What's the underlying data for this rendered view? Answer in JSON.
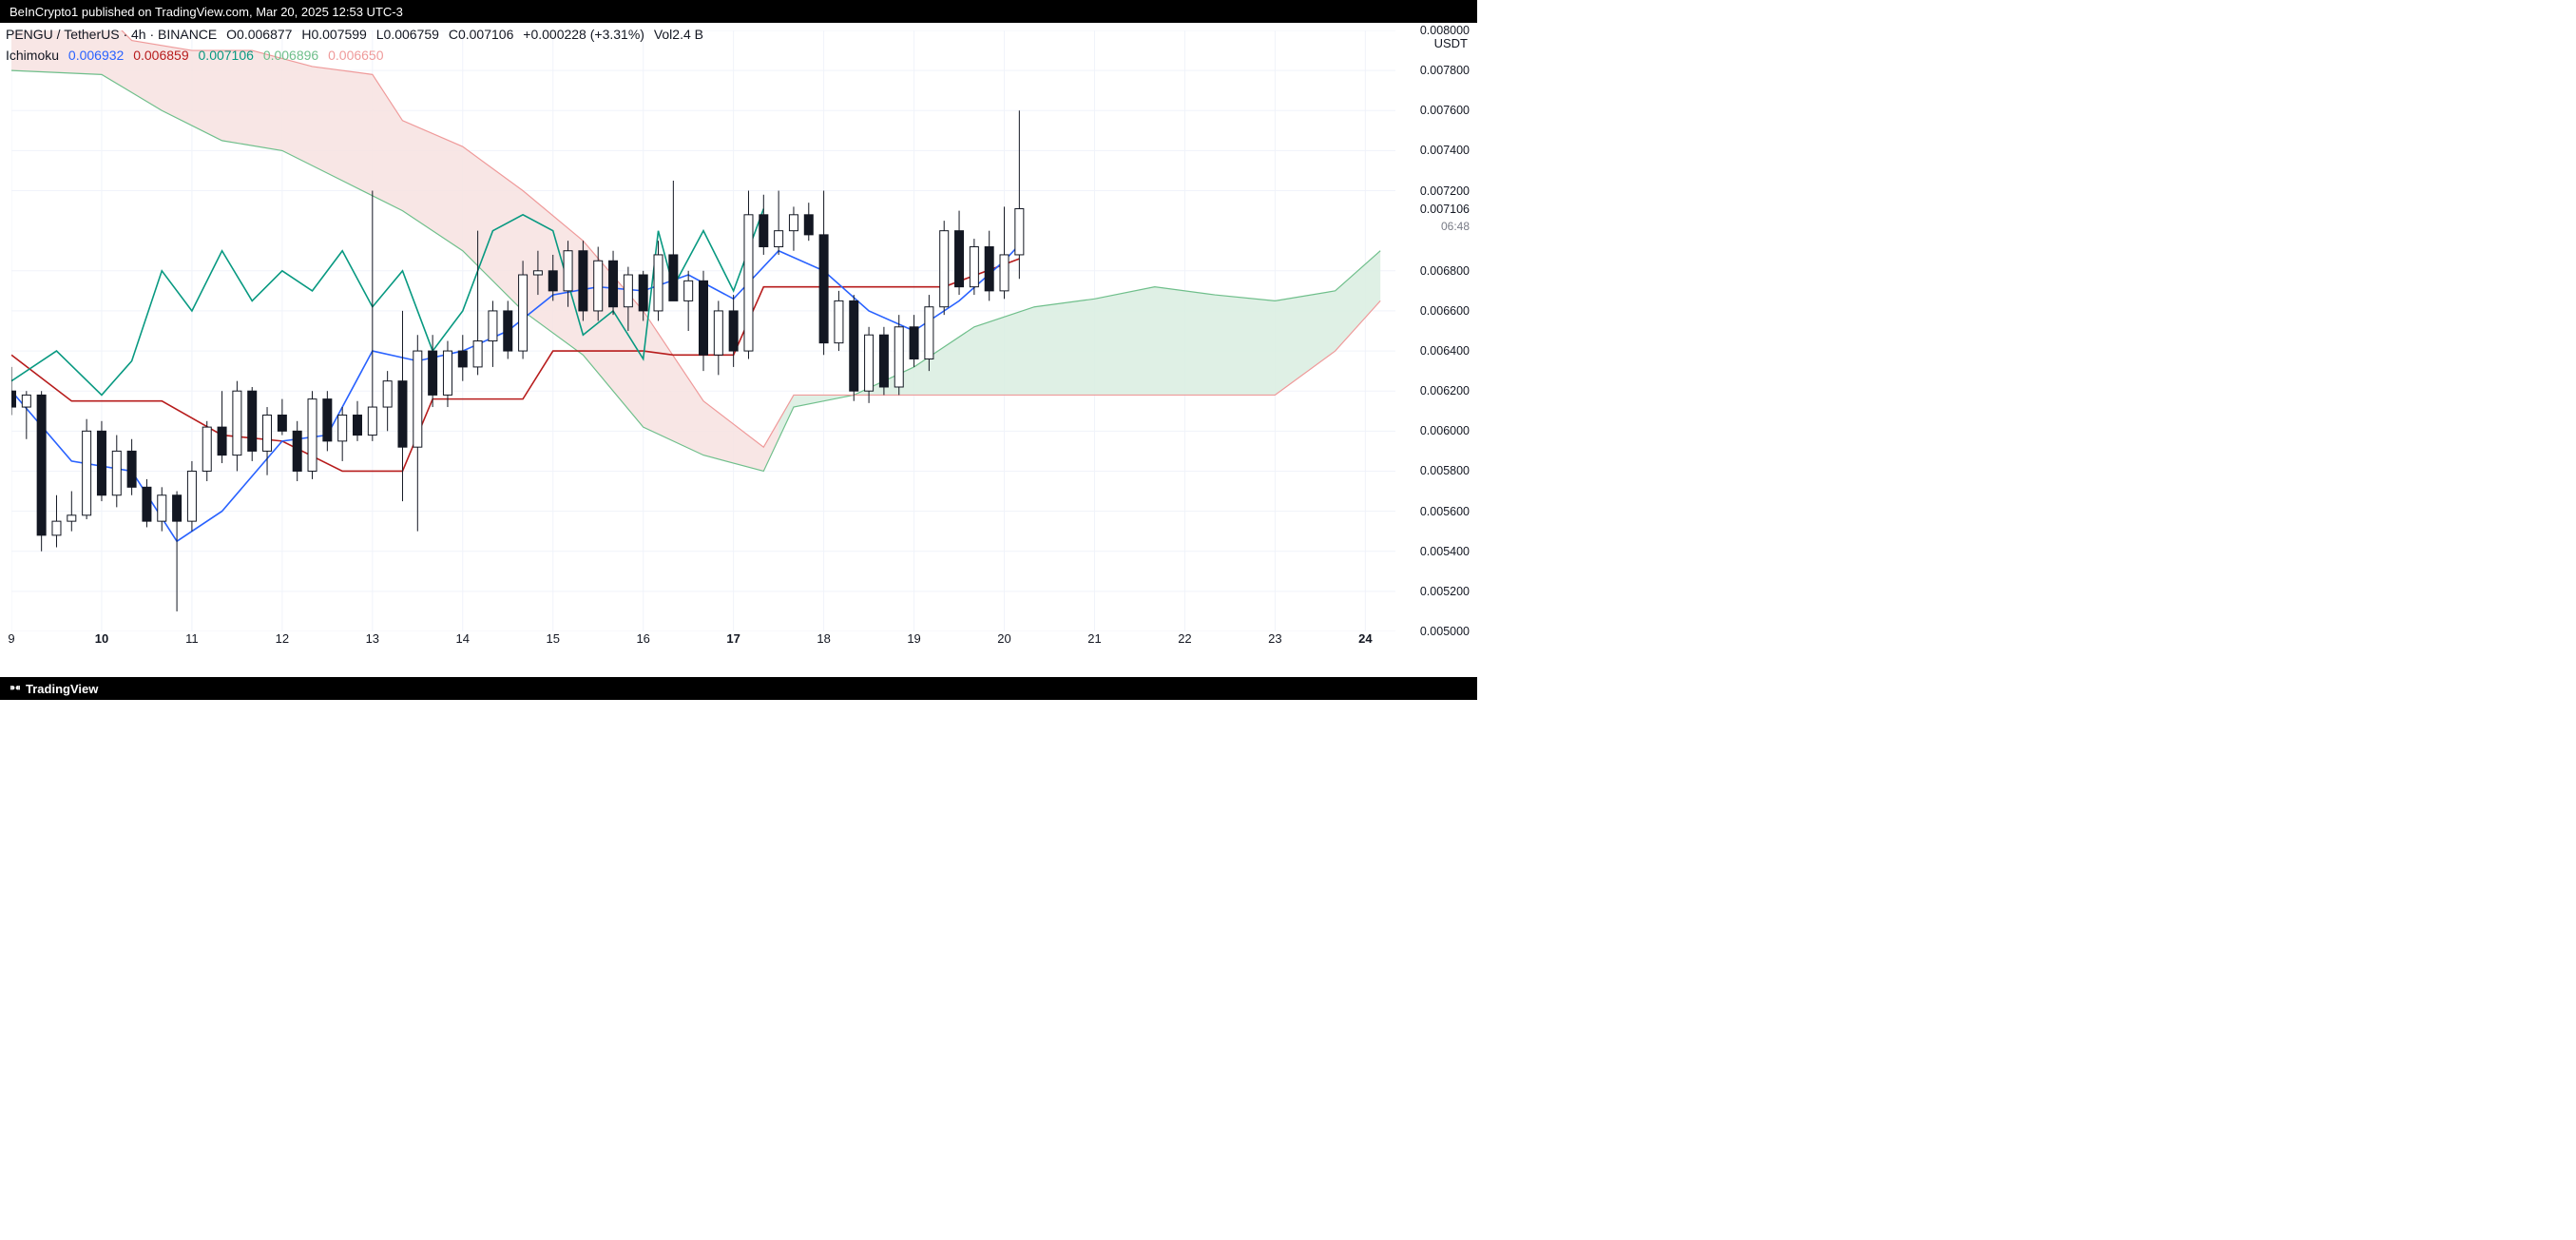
{
  "topbar": {
    "text": "BeInCrypto1 published on TradingView.com, Mar 20, 2025 12:53 UTC-3"
  },
  "header": {
    "symbol": "PENGU / TetherUS · 4h · BINANCE",
    "O_label": "O",
    "O": "0.006877",
    "H_label": "H",
    "H": "0.007599",
    "L_label": "L",
    "L": "0.006759",
    "C_label": "C",
    "C": "0.007106",
    "change_abs": "+0.000228",
    "change_pct": "(+3.31%)",
    "Vol_label": "Vol",
    "Vol": "2.4 B",
    "ohlc_color": "#131722",
    "change_color": "#131722"
  },
  "indicator": {
    "name": "Ichimoku",
    "v1": "0.006932",
    "c1": "#2962ff",
    "v2": "0.006859",
    "c2": "#b71c1c",
    "v3": "0.007106",
    "c3": "#089981",
    "v4": "0.006896",
    "c4": "#6fbf8b",
    "v5": "0.006650",
    "c5": "#ef9a9a"
  },
  "y_axis": {
    "title": "USDT",
    "min": 0.005,
    "max": 0.008,
    "ticks": [
      {
        "v": 0.008,
        "l": "0.008000"
      },
      {
        "v": 0.0078,
        "l": "0.007800"
      },
      {
        "v": 0.0076,
        "l": "0.007600"
      },
      {
        "v": 0.0074,
        "l": "0.007400"
      },
      {
        "v": 0.0072,
        "l": "0.007200"
      },
      {
        "v": 0.007106,
        "l": "0.007106",
        "last": true
      },
      {
        "v": 0.00702,
        "l": "06:48",
        "countdown": true
      },
      {
        "v": 0.0068,
        "l": "0.006800"
      },
      {
        "v": 0.0066,
        "l": "0.006600"
      },
      {
        "v": 0.0064,
        "l": "0.006400"
      },
      {
        "v": 0.0062,
        "l": "0.006200"
      },
      {
        "v": 0.006,
        "l": "0.006000"
      },
      {
        "v": 0.0058,
        "l": "0.005800"
      },
      {
        "v": 0.0056,
        "l": "0.005600"
      },
      {
        "v": 0.0054,
        "l": "0.005400"
      },
      {
        "v": 0.0052,
        "l": "0.005200"
      },
      {
        "v": 0.005,
        "l": "0.005000"
      }
    ]
  },
  "x_axis": {
    "min": 0,
    "max": 92,
    "ticks": [
      {
        "i": 0,
        "l": "9"
      },
      {
        "i": 6,
        "l": "10",
        "bold": true
      },
      {
        "i": 12,
        "l": "11"
      },
      {
        "i": 18,
        "l": "12"
      },
      {
        "i": 24,
        "l": "13"
      },
      {
        "i": 30,
        "l": "14"
      },
      {
        "i": 36,
        "l": "15"
      },
      {
        "i": 42,
        "l": "16"
      },
      {
        "i": 48,
        "l": "17",
        "bold": true
      },
      {
        "i": 54,
        "l": "18"
      },
      {
        "i": 60,
        "l": "19"
      },
      {
        "i": 66,
        "l": "20"
      },
      {
        "i": 72,
        "l": "21"
      },
      {
        "i": 78,
        "l": "22"
      },
      {
        "i": 84,
        "l": "23"
      },
      {
        "i": 90,
        "l": "24",
        "bold": true
      }
    ]
  },
  "style": {
    "grid_color": "#f0f3fa",
    "candle_up_fill": "#ffffff",
    "candle_up_border": "#131722",
    "candle_down_fill": "#131722",
    "candle_down_border": "#131722",
    "wick_color": "#131722",
    "wick_width": 1,
    "candle_body_width": 9,
    "tenkan_color": "#2962ff",
    "tenkan_width": 1.6,
    "kijun_color": "#b71c1c",
    "kijun_width": 1.6,
    "chikou_color": "#089981",
    "chikou_width": 1.6,
    "spanA_color": "#6fbf8b",
    "spanB_color": "#ef9a9a",
    "cloud_up_fill": "#d9ede0",
    "cloud_down_fill": "#f7e2e0",
    "cloud_opacity": 0.85
  },
  "candles": [
    {
      "i": 0,
      "o": 0.0062,
      "h": 0.00632,
      "l": 0.00608,
      "c": 0.00612
    },
    {
      "i": 1,
      "o": 0.00612,
      "h": 0.0062,
      "l": 0.00596,
      "c": 0.00618
    },
    {
      "i": 2,
      "o": 0.00618,
      "h": 0.0062,
      "l": 0.0054,
      "c": 0.00548
    },
    {
      "i": 3,
      "o": 0.00548,
      "h": 0.00568,
      "l": 0.00542,
      "c": 0.00555
    },
    {
      "i": 4,
      "o": 0.00555,
      "h": 0.0057,
      "l": 0.0055,
      "c": 0.00558
    },
    {
      "i": 5,
      "o": 0.00558,
      "h": 0.00606,
      "l": 0.00556,
      "c": 0.006
    },
    {
      "i": 6,
      "o": 0.006,
      "h": 0.00605,
      "l": 0.00565,
      "c": 0.00568
    },
    {
      "i": 7,
      "o": 0.00568,
      "h": 0.00598,
      "l": 0.00562,
      "c": 0.0059
    },
    {
      "i": 8,
      "o": 0.0059,
      "h": 0.00596,
      "l": 0.00568,
      "c": 0.00572
    },
    {
      "i": 9,
      "o": 0.00572,
      "h": 0.00576,
      "l": 0.00552,
      "c": 0.00555
    },
    {
      "i": 10,
      "o": 0.00555,
      "h": 0.00572,
      "l": 0.0055,
      "c": 0.00568
    },
    {
      "i": 11,
      "o": 0.00568,
      "h": 0.0057,
      "l": 0.0051,
      "c": 0.00555
    },
    {
      "i": 12,
      "o": 0.00555,
      "h": 0.00585,
      "l": 0.0055,
      "c": 0.0058
    },
    {
      "i": 13,
      "o": 0.0058,
      "h": 0.00605,
      "l": 0.00575,
      "c": 0.00602
    },
    {
      "i": 14,
      "o": 0.00602,
      "h": 0.0062,
      "l": 0.00584,
      "c": 0.00588
    },
    {
      "i": 15,
      "o": 0.00588,
      "h": 0.00625,
      "l": 0.0058,
      "c": 0.0062
    },
    {
      "i": 16,
      "o": 0.0062,
      "h": 0.00622,
      "l": 0.00585,
      "c": 0.0059
    },
    {
      "i": 17,
      "o": 0.0059,
      "h": 0.00612,
      "l": 0.00578,
      "c": 0.00608
    },
    {
      "i": 18,
      "o": 0.00608,
      "h": 0.00616,
      "l": 0.00598,
      "c": 0.006
    },
    {
      "i": 19,
      "o": 0.006,
      "h": 0.00605,
      "l": 0.00575,
      "c": 0.0058
    },
    {
      "i": 20,
      "o": 0.0058,
      "h": 0.0062,
      "l": 0.00576,
      "c": 0.00616
    },
    {
      "i": 21,
      "o": 0.00616,
      "h": 0.0062,
      "l": 0.0059,
      "c": 0.00595
    },
    {
      "i": 22,
      "o": 0.00595,
      "h": 0.00612,
      "l": 0.00585,
      "c": 0.00608
    },
    {
      "i": 23,
      "o": 0.00608,
      "h": 0.00615,
      "l": 0.00595,
      "c": 0.00598
    },
    {
      "i": 24,
      "o": 0.00598,
      "h": 0.0072,
      "l": 0.00595,
      "c": 0.00612
    },
    {
      "i": 25,
      "o": 0.00612,
      "h": 0.0063,
      "l": 0.006,
      "c": 0.00625
    },
    {
      "i": 26,
      "o": 0.00625,
      "h": 0.0066,
      "l": 0.00565,
      "c": 0.00592
    },
    {
      "i": 27,
      "o": 0.00592,
      "h": 0.00648,
      "l": 0.0055,
      "c": 0.0064
    },
    {
      "i": 28,
      "o": 0.0064,
      "h": 0.00648,
      "l": 0.00612,
      "c": 0.00618
    },
    {
      "i": 29,
      "o": 0.00618,
      "h": 0.00645,
      "l": 0.00612,
      "c": 0.0064
    },
    {
      "i": 30,
      "o": 0.0064,
      "h": 0.00648,
      "l": 0.00625,
      "c": 0.00632
    },
    {
      "i": 31,
      "o": 0.00632,
      "h": 0.007,
      "l": 0.00628,
      "c": 0.00645
    },
    {
      "i": 32,
      "o": 0.00645,
      "h": 0.00665,
      "l": 0.00632,
      "c": 0.0066
    },
    {
      "i": 33,
      "o": 0.0066,
      "h": 0.00665,
      "l": 0.00636,
      "c": 0.0064
    },
    {
      "i": 34,
      "o": 0.0064,
      "h": 0.00685,
      "l": 0.00636,
      "c": 0.00678
    },
    {
      "i": 35,
      "o": 0.00678,
      "h": 0.0069,
      "l": 0.00668,
      "c": 0.0068
    },
    {
      "i": 36,
      "o": 0.0068,
      "h": 0.00688,
      "l": 0.00665,
      "c": 0.0067
    },
    {
      "i": 37,
      "o": 0.0067,
      "h": 0.00695,
      "l": 0.00662,
      "c": 0.0069
    },
    {
      "i": 38,
      "o": 0.0069,
      "h": 0.00695,
      "l": 0.00655,
      "c": 0.0066
    },
    {
      "i": 39,
      "o": 0.0066,
      "h": 0.00692,
      "l": 0.00655,
      "c": 0.00685
    },
    {
      "i": 40,
      "o": 0.00685,
      "h": 0.0069,
      "l": 0.00658,
      "c": 0.00662
    },
    {
      "i": 41,
      "o": 0.00662,
      "h": 0.00682,
      "l": 0.0065,
      "c": 0.00678
    },
    {
      "i": 42,
      "o": 0.00678,
      "h": 0.0068,
      "l": 0.00655,
      "c": 0.0066
    },
    {
      "i": 43,
      "o": 0.0066,
      "h": 0.00695,
      "l": 0.00655,
      "c": 0.00688
    },
    {
      "i": 44,
      "o": 0.00688,
      "h": 0.00725,
      "l": 0.0068,
      "c": 0.00665
    },
    {
      "i": 45,
      "o": 0.00665,
      "h": 0.0068,
      "l": 0.0065,
      "c": 0.00675
    },
    {
      "i": 46,
      "o": 0.00675,
      "h": 0.0068,
      "l": 0.0063,
      "c": 0.00638
    },
    {
      "i": 47,
      "o": 0.00638,
      "h": 0.00665,
      "l": 0.00628,
      "c": 0.0066
    },
    {
      "i": 48,
      "o": 0.0066,
      "h": 0.00668,
      "l": 0.00632,
      "c": 0.0064
    },
    {
      "i": 49,
      "o": 0.0064,
      "h": 0.0072,
      "l": 0.00636,
      "c": 0.00708
    },
    {
      "i": 50,
      "o": 0.00708,
      "h": 0.00718,
      "l": 0.00688,
      "c": 0.00692
    },
    {
      "i": 51,
      "o": 0.00692,
      "h": 0.0072,
      "l": 0.00688,
      "c": 0.007
    },
    {
      "i": 52,
      "o": 0.007,
      "h": 0.00712,
      "l": 0.0069,
      "c": 0.00708
    },
    {
      "i": 53,
      "o": 0.00708,
      "h": 0.00714,
      "l": 0.00695,
      "c": 0.00698
    },
    {
      "i": 54,
      "o": 0.00698,
      "h": 0.0072,
      "l": 0.00638,
      "c": 0.00644
    },
    {
      "i": 55,
      "o": 0.00644,
      "h": 0.0067,
      "l": 0.0064,
      "c": 0.00665
    },
    {
      "i": 56,
      "o": 0.00665,
      "h": 0.00668,
      "l": 0.00615,
      "c": 0.0062
    },
    {
      "i": 57,
      "o": 0.0062,
      "h": 0.00652,
      "l": 0.00614,
      "c": 0.00648
    },
    {
      "i": 58,
      "o": 0.00648,
      "h": 0.00652,
      "l": 0.00618,
      "c": 0.00622
    },
    {
      "i": 59,
      "o": 0.00622,
      "h": 0.00658,
      "l": 0.00618,
      "c": 0.00652
    },
    {
      "i": 60,
      "o": 0.00652,
      "h": 0.00658,
      "l": 0.00632,
      "c": 0.00636
    },
    {
      "i": 61,
      "o": 0.00636,
      "h": 0.00668,
      "l": 0.0063,
      "c": 0.00662
    },
    {
      "i": 62,
      "o": 0.00662,
      "h": 0.00705,
      "l": 0.00658,
      "c": 0.007
    },
    {
      "i": 63,
      "o": 0.007,
      "h": 0.0071,
      "l": 0.00668,
      "c": 0.00672
    },
    {
      "i": 64,
      "o": 0.00672,
      "h": 0.00696,
      "l": 0.00668,
      "c": 0.00692
    },
    {
      "i": 65,
      "o": 0.00692,
      "h": 0.007,
      "l": 0.00665,
      "c": 0.0067
    },
    {
      "i": 66,
      "o": 0.0067,
      "h": 0.00712,
      "l": 0.00666,
      "c": 0.00688
    },
    {
      "i": 67,
      "o": 0.00688,
      "h": 0.0076,
      "l": 0.00676,
      "c": 0.00711
    }
  ],
  "tenkan": [
    {
      "i": 0,
      "v": 0.0062
    },
    {
      "i": 4,
      "v": 0.00585
    },
    {
      "i": 8,
      "v": 0.0058
    },
    {
      "i": 11,
      "v": 0.00545
    },
    {
      "i": 14,
      "v": 0.0056
    },
    {
      "i": 18,
      "v": 0.00595
    },
    {
      "i": 21,
      "v": 0.00598
    },
    {
      "i": 24,
      "v": 0.0064
    },
    {
      "i": 27,
      "v": 0.00635
    },
    {
      "i": 30,
      "v": 0.0064
    },
    {
      "i": 33,
      "v": 0.0065
    },
    {
      "i": 36,
      "v": 0.00668
    },
    {
      "i": 39,
      "v": 0.00672
    },
    {
      "i": 42,
      "v": 0.0067
    },
    {
      "i": 45,
      "v": 0.00678
    },
    {
      "i": 48,
      "v": 0.00666
    },
    {
      "i": 51,
      "v": 0.0069
    },
    {
      "i": 54,
      "v": 0.0068
    },
    {
      "i": 57,
      "v": 0.0066
    },
    {
      "i": 60,
      "v": 0.0065
    },
    {
      "i": 63,
      "v": 0.00665
    },
    {
      "i": 66,
      "v": 0.00685
    },
    {
      "i": 67,
      "v": 0.00693
    }
  ],
  "kijun": [
    {
      "i": 0,
      "v": 0.00638
    },
    {
      "i": 4,
      "v": 0.00615
    },
    {
      "i": 10,
      "v": 0.00615
    },
    {
      "i": 14,
      "v": 0.00598
    },
    {
      "i": 18,
      "v": 0.00595
    },
    {
      "i": 22,
      "v": 0.0058
    },
    {
      "i": 26,
      "v": 0.0058
    },
    {
      "i": 28,
      "v": 0.00616
    },
    {
      "i": 34,
      "v": 0.00616
    },
    {
      "i": 36,
      "v": 0.0064
    },
    {
      "i": 42,
      "v": 0.0064
    },
    {
      "i": 44,
      "v": 0.00638
    },
    {
      "i": 48,
      "v": 0.00638
    },
    {
      "i": 50,
      "v": 0.00672
    },
    {
      "i": 58,
      "v": 0.00672
    },
    {
      "i": 62,
      "v": 0.00672
    },
    {
      "i": 67,
      "v": 0.00686
    }
  ],
  "chikou": [
    {
      "i": 0,
      "v": 0.00625
    },
    {
      "i": 3,
      "v": 0.0064
    },
    {
      "i": 6,
      "v": 0.00618
    },
    {
      "i": 8,
      "v": 0.00635
    },
    {
      "i": 10,
      "v": 0.0068
    },
    {
      "i": 12,
      "v": 0.0066
    },
    {
      "i": 14,
      "v": 0.0069
    },
    {
      "i": 16,
      "v": 0.00665
    },
    {
      "i": 18,
      "v": 0.0068
    },
    {
      "i": 20,
      "v": 0.0067
    },
    {
      "i": 22,
      "v": 0.0069
    },
    {
      "i": 24,
      "v": 0.00662
    },
    {
      "i": 26,
      "v": 0.0068
    },
    {
      "i": 28,
      "v": 0.0064
    },
    {
      "i": 30,
      "v": 0.0066
    },
    {
      "i": 32,
      "v": 0.007
    },
    {
      "i": 34,
      "v": 0.00708
    },
    {
      "i": 36,
      "v": 0.007
    },
    {
      "i": 38,
      "v": 0.00648
    },
    {
      "i": 40,
      "v": 0.0066
    },
    {
      "i": 42,
      "v": 0.00636
    },
    {
      "i": 43,
      "v": 0.007
    },
    {
      "i": 44,
      "v": 0.00672
    },
    {
      "i": 46,
      "v": 0.007
    },
    {
      "i": 48,
      "v": 0.0067
    },
    {
      "i": 50,
      "v": 0.00711
    }
  ],
  "spanA": [
    {
      "i": 0,
      "v": 0.0078
    },
    {
      "i": 6,
      "v": 0.00778
    },
    {
      "i": 10,
      "v": 0.0076
    },
    {
      "i": 14,
      "v": 0.00745
    },
    {
      "i": 18,
      "v": 0.0074
    },
    {
      "i": 22,
      "v": 0.00725
    },
    {
      "i": 26,
      "v": 0.0071
    },
    {
      "i": 30,
      "v": 0.0069
    },
    {
      "i": 34,
      "v": 0.0066
    },
    {
      "i": 38,
      "v": 0.00638
    },
    {
      "i": 42,
      "v": 0.00602
    },
    {
      "i": 46,
      "v": 0.00588
    },
    {
      "i": 50,
      "v": 0.0058
    },
    {
      "i": 52,
      "v": 0.00612
    },
    {
      "i": 56,
      "v": 0.00618
    },
    {
      "i": 60,
      "v": 0.00632
    },
    {
      "i": 64,
      "v": 0.00652
    },
    {
      "i": 68,
      "v": 0.00662
    },
    {
      "i": 72,
      "v": 0.00666
    },
    {
      "i": 76,
      "v": 0.00672
    },
    {
      "i": 80,
      "v": 0.00668
    },
    {
      "i": 84,
      "v": 0.00665
    },
    {
      "i": 88,
      "v": 0.0067
    },
    {
      "i": 91,
      "v": 0.0069
    }
  ],
  "spanB": [
    {
      "i": 0,
      "v": 0.00815
    },
    {
      "i": 6,
      "v": 0.0081
    },
    {
      "i": 8,
      "v": 0.00795
    },
    {
      "i": 12,
      "v": 0.0079
    },
    {
      "i": 16,
      "v": 0.0079
    },
    {
      "i": 20,
      "v": 0.00782
    },
    {
      "i": 24,
      "v": 0.00778
    },
    {
      "i": 26,
      "v": 0.00755
    },
    {
      "i": 30,
      "v": 0.00742
    },
    {
      "i": 34,
      "v": 0.0072
    },
    {
      "i": 38,
      "v": 0.00695
    },
    {
      "i": 42,
      "v": 0.0066
    },
    {
      "i": 46,
      "v": 0.00615
    },
    {
      "i": 50,
      "v": 0.00592
    },
    {
      "i": 52,
      "v": 0.00618
    },
    {
      "i": 56,
      "v": 0.00618
    },
    {
      "i": 60,
      "v": 0.00618
    },
    {
      "i": 72,
      "v": 0.00618
    },
    {
      "i": 84,
      "v": 0.00618
    },
    {
      "i": 88,
      "v": 0.0064
    },
    {
      "i": 91,
      "v": 0.00665
    }
  ],
  "bottombar": {
    "brand": "TradingView"
  }
}
